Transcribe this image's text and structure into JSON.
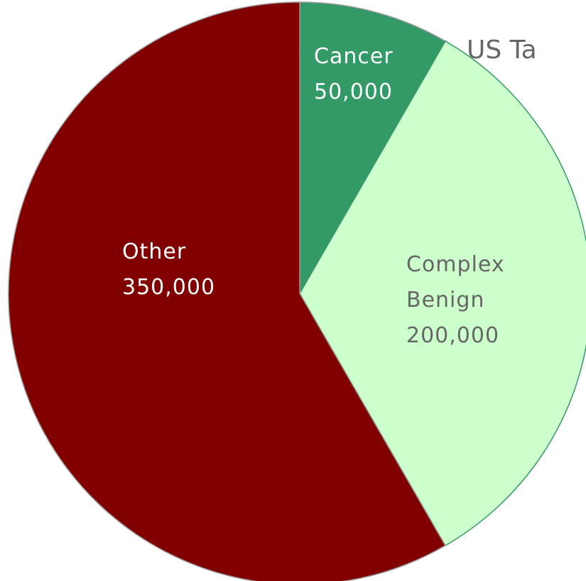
{
  "chart_data": {
    "type": "pie",
    "title": "US Ta",
    "categories": [
      "Cancer",
      "Complex Benign",
      "Other"
    ],
    "values": [
      50000,
      200000,
      350000
    ],
    "value_labels": [
      "50,000",
      "200,000",
      "350,000"
    ],
    "colors": [
      "#339966",
      "#ccffcc",
      "#800000"
    ]
  }
}
